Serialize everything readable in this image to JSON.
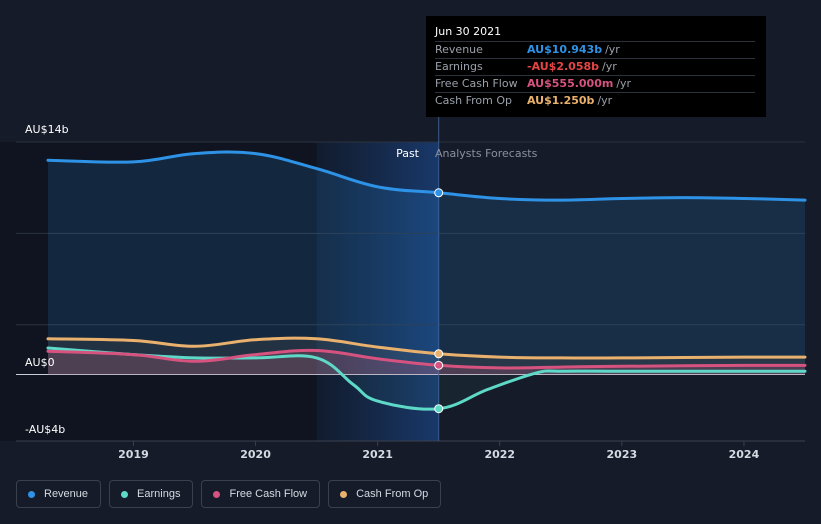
{
  "chart_data": {
    "type": "line",
    "x_unit": "year",
    "ylim": [
      -4,
      14
    ],
    "y_tick_labels": [
      {
        "value": 14,
        "label": "AU$14b"
      },
      {
        "value": 0,
        "label": "AU$0"
      },
      {
        "value": -4,
        "label": "-AU$4b"
      }
    ],
    "x_tick_labels": [
      "2019",
      "2020",
      "2021",
      "2022",
      "2023",
      "2024"
    ],
    "x_tick_values": [
      2019,
      2020,
      2021,
      2022,
      2023,
      2024
    ],
    "xlim": [
      2018.3,
      2024.5
    ],
    "divider_x": 2021.5,
    "highlight_start_x": 2020.5,
    "region_labels": {
      "past": "Past",
      "forecast": "Analysts Forecasts"
    },
    "series": [
      {
        "name": "Revenue",
        "color": "#2e93e6",
        "points": [
          [
            2018.3,
            12.9
          ],
          [
            2019.0,
            12.8
          ],
          [
            2019.5,
            13.3
          ],
          [
            2020.0,
            13.3
          ],
          [
            2020.5,
            12.4
          ],
          [
            2021.0,
            11.3
          ],
          [
            2021.5,
            10.943
          ],
          [
            2022.0,
            10.6
          ],
          [
            2022.5,
            10.5
          ],
          [
            2023.0,
            10.6
          ],
          [
            2023.5,
            10.65
          ],
          [
            2024.0,
            10.6
          ],
          [
            2024.5,
            10.5
          ]
        ]
      },
      {
        "name": "Earnings",
        "color": "#5ed9c7",
        "points": [
          [
            2018.3,
            1.6
          ],
          [
            2019.0,
            1.2
          ],
          [
            2019.5,
            1.0
          ],
          [
            2020.0,
            1.0
          ],
          [
            2020.5,
            1.0
          ],
          [
            2020.8,
            -0.6
          ],
          [
            2021.0,
            -1.6
          ],
          [
            2021.5,
            -2.058
          ],
          [
            2021.9,
            -0.9
          ],
          [
            2022.3,
            0.1
          ],
          [
            2022.5,
            0.2
          ],
          [
            2023.0,
            0.2
          ],
          [
            2024.0,
            0.2
          ],
          [
            2024.5,
            0.2
          ]
        ]
      },
      {
        "name": "Free Cash Flow",
        "color": "#d6527f",
        "points": [
          [
            2018.3,
            1.4
          ],
          [
            2019.0,
            1.2
          ],
          [
            2019.5,
            0.8
          ],
          [
            2020.0,
            1.2
          ],
          [
            2020.5,
            1.45
          ],
          [
            2021.0,
            0.95
          ],
          [
            2021.5,
            0.555
          ],
          [
            2022.0,
            0.4
          ],
          [
            2022.5,
            0.45
          ],
          [
            2023.0,
            0.5
          ],
          [
            2024.0,
            0.55
          ],
          [
            2024.5,
            0.55
          ]
        ]
      },
      {
        "name": "Cash From Op",
        "color": "#e9b16d",
        "points": [
          [
            2018.3,
            2.15
          ],
          [
            2019.0,
            2.05
          ],
          [
            2019.5,
            1.7
          ],
          [
            2020.0,
            2.1
          ],
          [
            2020.5,
            2.15
          ],
          [
            2021.0,
            1.65
          ],
          [
            2021.5,
            1.25
          ],
          [
            2022.0,
            1.05
          ],
          [
            2022.5,
            1.0
          ],
          [
            2023.0,
            1.0
          ],
          [
            2024.0,
            1.05
          ],
          [
            2024.5,
            1.05
          ]
        ]
      }
    ]
  },
  "tooltip": {
    "date": "Jun 30 2021",
    "rows": [
      {
        "label": "Revenue",
        "value": "AU$10.943b",
        "unit": "/yr",
        "color": "#2e93e6"
      },
      {
        "label": "Earnings",
        "value": "-AU$2.058b",
        "unit": "/yr",
        "color": "#e54545"
      },
      {
        "label": "Free Cash Flow",
        "value": "AU$555.000m",
        "unit": "/yr",
        "color": "#d6527f"
      },
      {
        "label": "Cash From Op",
        "value": "AU$1.250b",
        "unit": "/yr",
        "color": "#e9b16d"
      }
    ]
  },
  "legend": [
    {
      "label": "Revenue",
      "color": "#2e93e6"
    },
    {
      "label": "Earnings",
      "color": "#5ed9c7"
    },
    {
      "label": "Free Cash Flow",
      "color": "#d6527f"
    },
    {
      "label": "Cash From Op",
      "color": "#e9b16d"
    }
  ]
}
